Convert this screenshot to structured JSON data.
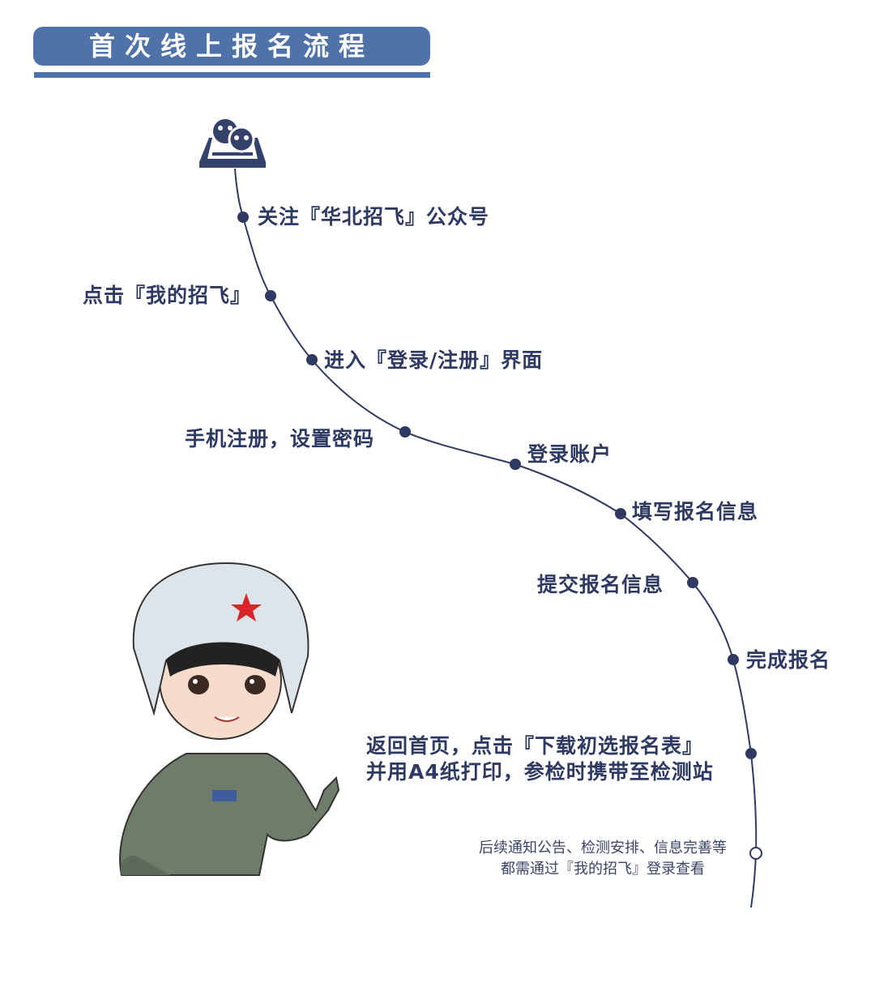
{
  "header": {
    "title": "首次线上报名流程"
  },
  "icon": "wechat-official-account-icon",
  "colors": {
    "banner": "#4f72a8",
    "text": "#2f3a63",
    "line": "#2f3a63"
  },
  "steps": [
    {
      "label": "关注『华北招飞』公众号"
    },
    {
      "label": "点击『我的招飞』"
    },
    {
      "label": "进入『登录/注册』界面"
    },
    {
      "label": "手机注册，设置密码"
    },
    {
      "label": "登录账户"
    },
    {
      "label": "填写报名信息"
    },
    {
      "label": "提交报名信息"
    },
    {
      "label": "完成报名"
    },
    {
      "line1": "返回首页，点击『下载初选报名表』",
      "line2": "并用A4纸打印，参检时携带至检测站"
    }
  ],
  "note": {
    "line1": "后续通知公告、检测安排、信息完善等",
    "line2": "都需通过『我的招飞』登录查看"
  }
}
